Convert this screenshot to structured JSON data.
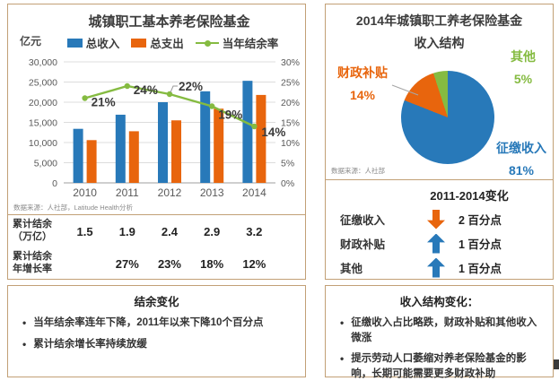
{
  "colors": {
    "blue": "#2879B9",
    "orange": "#E8650D",
    "green": "#85BB41",
    "border": "#C2A076",
    "text": "#3C3C3C"
  },
  "left": {
    "chart": {
      "title": "城镇职工基本养老保险基金",
      "unit_label": "亿元",
      "legend": [
        {
          "label": "总收入"
        },
        {
          "label": "总支出"
        },
        {
          "label": "当年结余率"
        }
      ],
      "source": "数据来源：人社部，Latitude Health分析"
    },
    "table": {
      "rows": [
        {
          "label_l1": "累计结余",
          "label_l2": "（万亿）",
          "values": [
            "1.5",
            "1.9",
            "2.4",
            "2.9",
            "3.2"
          ]
        },
        {
          "label_l1": "累计结余",
          "label_l2": "年增长率",
          "values": [
            "",
            "27%",
            "23%",
            "18%",
            "12%"
          ]
        }
      ]
    },
    "notes": {
      "title": "结余变化",
      "bullets": [
        "当年结余率连年下降，2011年以来下降10个百分点",
        "累计结余增长率持续放缓"
      ]
    }
  },
  "right": {
    "pie": {
      "title_line1": "2014年城镇职工养老保险基金",
      "title_line2": "收入结构",
      "source": "数据来源：人社部",
      "slices": [
        {
          "label": "征缴收入",
          "pct_label": "81%",
          "color": "#2879B9"
        },
        {
          "label": "财政补贴",
          "pct_label": "14%",
          "color": "#E8650D"
        },
        {
          "label": "其他",
          "pct_label": "5%",
          "color": "#85BB41"
        }
      ]
    },
    "changes": {
      "title": "2011-2014变化",
      "rows": [
        {
          "label": "征缴收入",
          "direction": "down",
          "color": "#E8650D",
          "value": "2 百分点"
        },
        {
          "label": "财政补贴",
          "direction": "up",
          "color": "#2879B9",
          "value": "1 百分点"
        },
        {
          "label": "其他",
          "direction": "up",
          "color": "#2879B9",
          "value": "1 百分点"
        }
      ]
    },
    "notes": {
      "title": "收入结构变化：",
      "bullets": [
        "征缴收入占比略跌，财政补贴和其他收入微涨",
        "提示劳动人口萎缩对养老保险基金的影响，长期可能需要更多财政补助"
      ]
    }
  },
  "chart_data": [
    {
      "type": "bar",
      "title": "城镇职工基本养老保险基金",
      "categories": [
        "2010",
        "2011",
        "2012",
        "2013",
        "2014"
      ],
      "series": [
        {
          "name": "总收入",
          "type": "bar",
          "axis": "left",
          "color": "#2879B9",
          "values": [
            13400,
            16900,
            20000,
            22700,
            25300
          ]
        },
        {
          "name": "总支出",
          "type": "bar",
          "axis": "left",
          "color": "#E8650D",
          "values": [
            10600,
            12800,
            15500,
            18400,
            21800
          ]
        },
        {
          "name": "当年结余率",
          "type": "line",
          "axis": "right",
          "color": "#85BB41",
          "values": [
            21,
            24,
            22,
            19,
            14
          ],
          "labels": [
            "21%",
            "24%",
            "22%",
            "19%",
            "14%"
          ]
        }
      ],
      "ylabel_left": "亿元",
      "ylim_left": [
        0,
        30000
      ],
      "ytick_step_left": 5000,
      "ylim_right": [
        0,
        30
      ],
      "ytick_step_right": 5,
      "grid": true,
      "legend_position": "top"
    },
    {
      "type": "pie",
      "title": "2014年城镇职工养老保险基金收入结构",
      "labels": [
        "征缴收入",
        "财政补贴",
        "其他"
      ],
      "values": [
        81,
        14,
        5
      ],
      "unit": "percent",
      "start_angle_deg": 0,
      "direction": "clockwise"
    },
    {
      "type": "table",
      "categories": [
        "2010",
        "2011",
        "2012",
        "2013",
        "2014"
      ],
      "rows": [
        {
          "label": "累计结余（万亿）",
          "values": [
            "1.5",
            "1.9",
            "2.4",
            "2.9",
            "3.2"
          ]
        },
        {
          "label": "累计结余年增长率",
          "values": [
            "",
            "27%",
            "23%",
            "18%",
            "12%"
          ]
        }
      ]
    }
  ]
}
